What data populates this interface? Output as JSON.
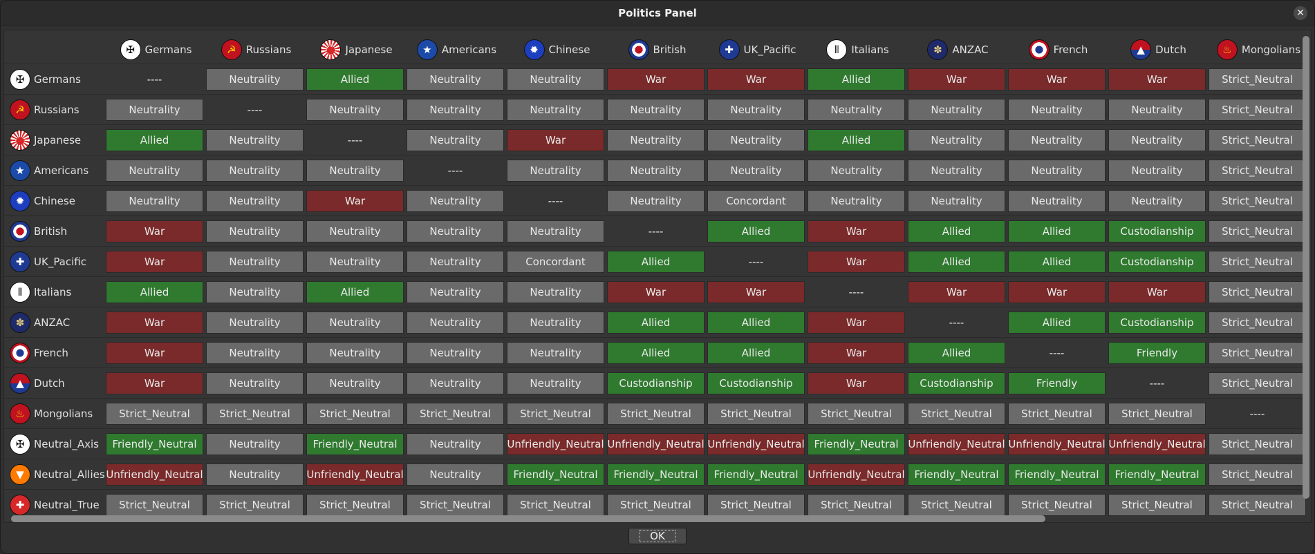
{
  "window": {
    "title": "Politics Panel",
    "close_icon": "close-icon"
  },
  "colors": {
    "neutral": "#6a6a6a",
    "good": "#2f7a2f",
    "bad": "#7a2a2a"
  },
  "factions": [
    {
      "name": "Germans",
      "icon": "iron-cross-icon"
    },
    {
      "name": "Russians",
      "icon": "hammer-sickle-icon"
    },
    {
      "name": "Japanese",
      "icon": "rising-sun-icon"
    },
    {
      "name": "Americans",
      "icon": "star-roundel-icon"
    },
    {
      "name": "Chinese",
      "icon": "white-sun-icon"
    },
    {
      "name": "British",
      "icon": "raf-roundel-icon"
    },
    {
      "name": "UK_Pacific",
      "icon": "union-jack-icon"
    },
    {
      "name": "Italians",
      "icon": "fasces-icon"
    },
    {
      "name": "ANZAC",
      "icon": "anzac-badge-icon"
    },
    {
      "name": "French",
      "icon": "french-roundel-icon"
    },
    {
      "name": "Dutch",
      "icon": "dutch-emblem-icon"
    },
    {
      "name": "Mongolians",
      "icon": "soyombo-icon"
    },
    {
      "name": "Neutral_Axis",
      "icon": "neutral-axis-icon"
    },
    {
      "name": "Neutral_Allies",
      "icon": "neutral-allies-icon"
    },
    {
      "name": "Neutral_True",
      "icon": "neutral-true-icon"
    }
  ],
  "columns": [
    "Germans",
    "Russians",
    "Japanese",
    "Americans",
    "Chinese",
    "British",
    "UK_Pacific",
    "Italians",
    "ANZAC",
    "French",
    "Dutch",
    "Mongolians"
  ],
  "matrix": [
    [
      "----",
      "Neutrality",
      "Allied",
      "Neutrality",
      "Neutrality",
      "War",
      "War",
      "Allied",
      "War",
      "War",
      "War",
      "Strict_Neutral"
    ],
    [
      "Neutrality",
      "----",
      "Neutrality",
      "Neutrality",
      "Neutrality",
      "Neutrality",
      "Neutrality",
      "Neutrality",
      "Neutrality",
      "Neutrality",
      "Neutrality",
      "Strict_Neutral"
    ],
    [
      "Allied",
      "Neutrality",
      "----",
      "Neutrality",
      "War",
      "Neutrality",
      "Neutrality",
      "Allied",
      "Neutrality",
      "Neutrality",
      "Neutrality",
      "Strict_Neutral"
    ],
    [
      "Neutrality",
      "Neutrality",
      "Neutrality",
      "----",
      "Neutrality",
      "Neutrality",
      "Neutrality",
      "Neutrality",
      "Neutrality",
      "Neutrality",
      "Neutrality",
      "Strict_Neutral"
    ],
    [
      "Neutrality",
      "Neutrality",
      "War",
      "Neutrality",
      "----",
      "Neutrality",
      "Concordant",
      "Neutrality",
      "Neutrality",
      "Neutrality",
      "Neutrality",
      "Strict_Neutral"
    ],
    [
      "War",
      "Neutrality",
      "Neutrality",
      "Neutrality",
      "Neutrality",
      "----",
      "Allied",
      "War",
      "Allied",
      "Allied",
      "Custodianship",
      "Strict_Neutral"
    ],
    [
      "War",
      "Neutrality",
      "Neutrality",
      "Neutrality",
      "Concordant",
      "Allied",
      "----",
      "War",
      "Allied",
      "Allied",
      "Custodianship",
      "Strict_Neutral"
    ],
    [
      "Allied",
      "Neutrality",
      "Allied",
      "Neutrality",
      "Neutrality",
      "War",
      "War",
      "----",
      "War",
      "War",
      "War",
      "Strict_Neutral"
    ],
    [
      "War",
      "Neutrality",
      "Neutrality",
      "Neutrality",
      "Neutrality",
      "Allied",
      "Allied",
      "War",
      "----",
      "Allied",
      "Custodianship",
      "Strict_Neutral"
    ],
    [
      "War",
      "Neutrality",
      "Neutrality",
      "Neutrality",
      "Neutrality",
      "Allied",
      "Allied",
      "War",
      "Allied",
      "----",
      "Friendly",
      "Strict_Neutral"
    ],
    [
      "War",
      "Neutrality",
      "Neutrality",
      "Neutrality",
      "Neutrality",
      "Custodianship",
      "Custodianship",
      "War",
      "Custodianship",
      "Friendly",
      "----",
      "Strict_Neutral"
    ],
    [
      "Strict_Neutral",
      "Strict_Neutral",
      "Strict_Neutral",
      "Strict_Neutral",
      "Strict_Neutral",
      "Strict_Neutral",
      "Strict_Neutral",
      "Strict_Neutral",
      "Strict_Neutral",
      "Strict_Neutral",
      "Strict_Neutral",
      "----"
    ],
    [
      "Friendly_Neutral",
      "Neutrality",
      "Friendly_Neutral",
      "Neutrality",
      "Unfriendly_Neutral",
      "Unfriendly_Neutral",
      "Unfriendly_Neutral",
      "Friendly_Neutral",
      "Unfriendly_Neutral",
      "Unfriendly_Neutral",
      "Unfriendly_Neutral",
      "Strict_Neutral"
    ],
    [
      "Unfriendly_Neutral",
      "Neutrality",
      "Unfriendly_Neutral",
      "Neutrality",
      "Friendly_Neutral",
      "Friendly_Neutral",
      "Friendly_Neutral",
      "Unfriendly_Neutral",
      "Friendly_Neutral",
      "Friendly_Neutral",
      "Friendly_Neutral",
      "Strict_Neutral"
    ],
    [
      "Strict_Neutral",
      "Strict_Neutral",
      "Strict_Neutral",
      "Strict_Neutral",
      "Strict_Neutral",
      "Strict_Neutral",
      "Strict_Neutral",
      "Strict_Neutral",
      "Strict_Neutral",
      "Strict_Neutral",
      "Strict_Neutral",
      "Strict_Neutral"
    ]
  ],
  "ok_button": {
    "label": "OK"
  }
}
